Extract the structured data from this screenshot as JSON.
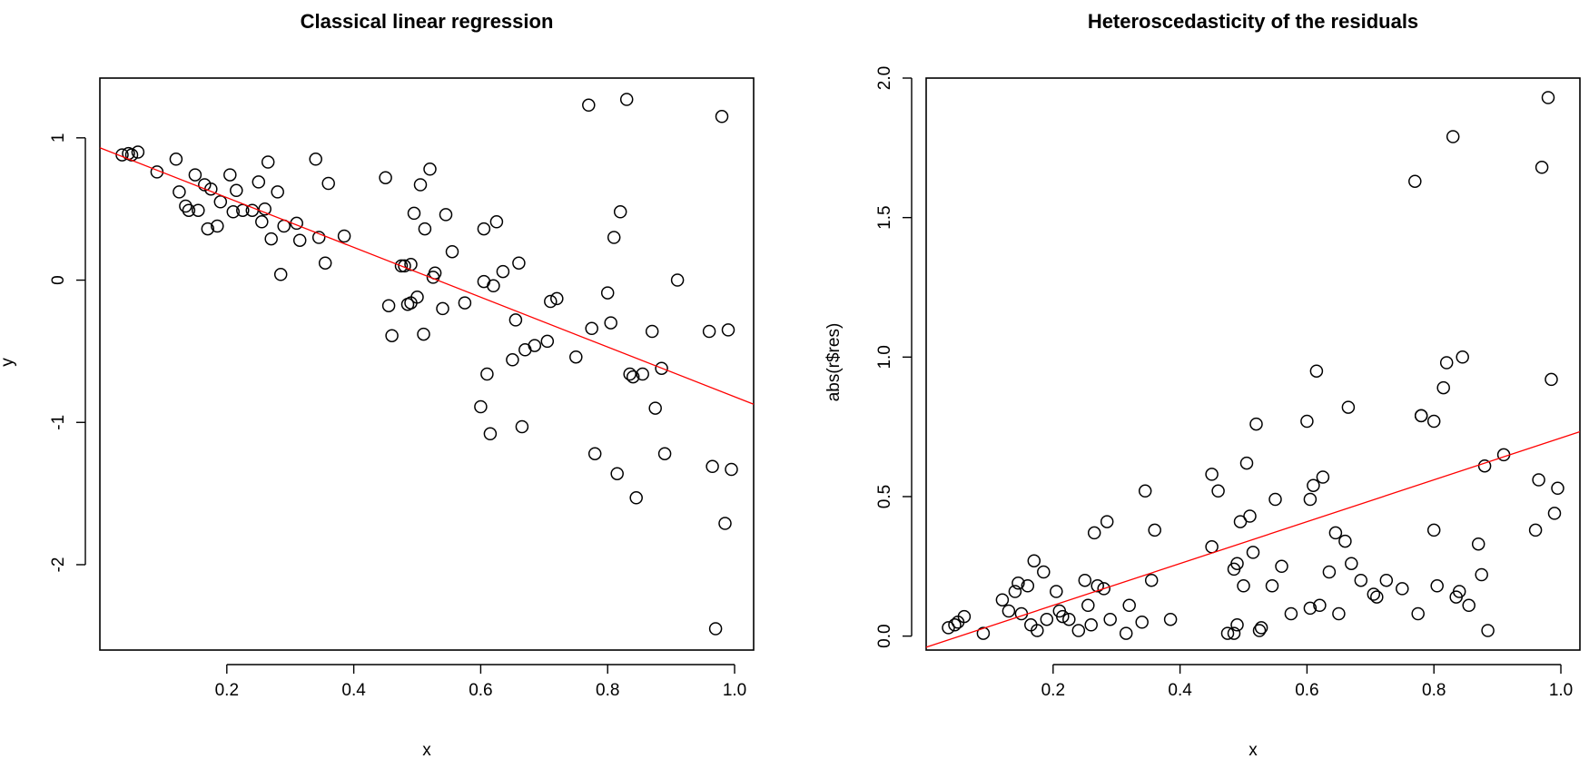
{
  "chart_data": [
    {
      "type": "scatter",
      "title": "Classical linear regression",
      "xlabel": "x",
      "ylabel": "y",
      "xlim": [
        0,
        1.03
      ],
      "ylim": [
        -2.6,
        1.42
      ],
      "xticks": [
        0.2,
        0.4,
        0.6,
        0.8,
        1.0
      ],
      "xtick_labels": [
        "0.2",
        "0.4",
        "0.6",
        "0.8",
        "1.0"
      ],
      "yticks": [
        -2,
        -1,
        0,
        1
      ],
      "ytick_labels": [
        "-2",
        "-1",
        "0",
        "1"
      ],
      "fit_line": {
        "color": "#ff0000",
        "intercept": 0.93,
        "slope": -1.75
      },
      "points": [
        [
          0.035,
          0.88
        ],
        [
          0.045,
          0.89
        ],
        [
          0.05,
          0.88
        ],
        [
          0.06,
          0.9
        ],
        [
          0.09,
          0.76
        ],
        [
          0.12,
          0.85
        ],
        [
          0.125,
          0.62
        ],
        [
          0.135,
          0.52
        ],
        [
          0.14,
          0.49
        ],
        [
          0.15,
          0.74
        ],
        [
          0.155,
          0.49
        ],
        [
          0.165,
          0.67
        ],
        [
          0.17,
          0.36
        ],
        [
          0.175,
          0.64
        ],
        [
          0.185,
          0.38
        ],
        [
          0.19,
          0.55
        ],
        [
          0.205,
          0.74
        ],
        [
          0.21,
          0.48
        ],
        [
          0.215,
          0.63
        ],
        [
          0.225,
          0.49
        ],
        [
          0.24,
          0.49
        ],
        [
          0.25,
          0.69
        ],
        [
          0.255,
          0.41
        ],
        [
          0.26,
          0.5
        ],
        [
          0.265,
          0.83
        ],
        [
          0.27,
          0.29
        ],
        [
          0.28,
          0.62
        ],
        [
          0.285,
          0.04
        ],
        [
          0.29,
          0.38
        ],
        [
          0.31,
          0.4
        ],
        [
          0.315,
          0.28
        ],
        [
          0.34,
          0.85
        ],
        [
          0.345,
          0.3
        ],
        [
          0.355,
          0.12
        ],
        [
          0.36,
          0.68
        ],
        [
          0.385,
          0.31
        ],
        [
          0.45,
          0.72
        ],
        [
          0.455,
          -0.18
        ],
        [
          0.46,
          -0.39
        ],
        [
          0.475,
          0.1
        ],
        [
          0.48,
          0.1
        ],
        [
          0.485,
          -0.17
        ],
        [
          0.49,
          -0.16
        ],
        [
          0.49,
          0.11
        ],
        [
          0.495,
          0.47
        ],
        [
          0.5,
          -0.12
        ],
        [
          0.505,
          0.67
        ],
        [
          0.51,
          -0.38
        ],
        [
          0.512,
          0.36
        ],
        [
          0.52,
          0.78
        ],
        [
          0.525,
          0.02
        ],
        [
          0.528,
          0.05
        ],
        [
          0.54,
          -0.2
        ],
        [
          0.545,
          0.46
        ],
        [
          0.555,
          0.2
        ],
        [
          0.575,
          -0.16
        ],
        [
          0.6,
          -0.89
        ],
        [
          0.605,
          0.36
        ],
        [
          0.605,
          -0.01
        ],
        [
          0.61,
          -0.66
        ],
        [
          0.615,
          -1.08
        ],
        [
          0.62,
          -0.04
        ],
        [
          0.625,
          0.41
        ],
        [
          0.635,
          0.06
        ],
        [
          0.65,
          -0.56
        ],
        [
          0.655,
          -0.28
        ],
        [
          0.66,
          0.12
        ],
        [
          0.665,
          -1.03
        ],
        [
          0.67,
          -0.49
        ],
        [
          0.685,
          -0.46
        ],
        [
          0.705,
          -0.43
        ],
        [
          0.71,
          -0.15
        ],
        [
          0.72,
          -0.13
        ],
        [
          0.75,
          -0.54
        ],
        [
          0.77,
          1.23
        ],
        [
          0.775,
          -0.34
        ],
        [
          0.78,
          -1.22
        ],
        [
          0.8,
          -0.09
        ],
        [
          0.805,
          -0.3
        ],
        [
          0.81,
          0.3
        ],
        [
          0.815,
          -1.36
        ],
        [
          0.82,
          0.48
        ],
        [
          0.83,
          1.27
        ],
        [
          0.835,
          -0.66
        ],
        [
          0.84,
          -0.68
        ],
        [
          0.845,
          -1.53
        ],
        [
          0.855,
          -0.66
        ],
        [
          0.87,
          -0.36
        ],
        [
          0.875,
          -0.9
        ],
        [
          0.885,
          -0.62
        ],
        [
          0.89,
          -1.22
        ],
        [
          0.91,
          0.0
        ],
        [
          0.96,
          -0.36
        ],
        [
          0.965,
          -1.31
        ],
        [
          0.97,
          -2.45
        ],
        [
          0.98,
          1.15
        ],
        [
          0.985,
          -1.71
        ],
        [
          0.99,
          -0.35
        ],
        [
          0.995,
          -1.33
        ]
      ]
    },
    {
      "type": "scatter",
      "title": "Heteroscedasticity of the residuals",
      "xlabel": "x",
      "ylabel": "abs(r$res)",
      "xlim": [
        0,
        1.03
      ],
      "ylim": [
        -0.05,
        2.0
      ],
      "xticks": [
        0.2,
        0.4,
        0.6,
        0.8,
        1.0
      ],
      "xtick_labels": [
        "0.2",
        "0.4",
        "0.6",
        "0.8",
        "1.0"
      ],
      "yticks": [
        0.0,
        0.5,
        1.0,
        1.5,
        2.0
      ],
      "ytick_labels": [
        "0.0",
        "0.5",
        "1.0",
        "1.5",
        "2.0"
      ],
      "fit_line": {
        "color": "#ff0000",
        "intercept": -0.04,
        "slope": 0.75
      },
      "points": [
        [
          0.035,
          0.03
        ],
        [
          0.045,
          0.04
        ],
        [
          0.05,
          0.05
        ],
        [
          0.06,
          0.07
        ],
        [
          0.09,
          0.01
        ],
        [
          0.12,
          0.13
        ],
        [
          0.13,
          0.09
        ],
        [
          0.14,
          0.16
        ],
        [
          0.145,
          0.19
        ],
        [
          0.15,
          0.08
        ],
        [
          0.16,
          0.18
        ],
        [
          0.165,
          0.04
        ],
        [
          0.17,
          0.27
        ],
        [
          0.175,
          0.02
        ],
        [
          0.185,
          0.23
        ],
        [
          0.19,
          0.06
        ],
        [
          0.205,
          0.16
        ],
        [
          0.21,
          0.09
        ],
        [
          0.215,
          0.07
        ],
        [
          0.225,
          0.06
        ],
        [
          0.24,
          0.02
        ],
        [
          0.25,
          0.2
        ],
        [
          0.255,
          0.11
        ],
        [
          0.26,
          0.04
        ],
        [
          0.265,
          0.37
        ],
        [
          0.27,
          0.18
        ],
        [
          0.28,
          0.17
        ],
        [
          0.285,
          0.41
        ],
        [
          0.29,
          0.06
        ],
        [
          0.315,
          0.01
        ],
        [
          0.32,
          0.11
        ],
        [
          0.34,
          0.05
        ],
        [
          0.345,
          0.52
        ],
        [
          0.355,
          0.2
        ],
        [
          0.36,
          0.38
        ],
        [
          0.385,
          0.06
        ],
        [
          0.45,
          0.58
        ],
        [
          0.45,
          0.32
        ],
        [
          0.46,
          0.52
        ],
        [
          0.475,
          0.01
        ],
        [
          0.485,
          0.24
        ],
        [
          0.485,
          0.01
        ],
        [
          0.49,
          0.26
        ],
        [
          0.49,
          0.04
        ],
        [
          0.495,
          0.41
        ],
        [
          0.5,
          0.18
        ],
        [
          0.505,
          0.62
        ],
        [
          0.51,
          0.43
        ],
        [
          0.515,
          0.3
        ],
        [
          0.52,
          0.76
        ],
        [
          0.525,
          0.02
        ],
        [
          0.528,
          0.03
        ],
        [
          0.545,
          0.18
        ],
        [
          0.55,
          0.49
        ],
        [
          0.56,
          0.25
        ],
        [
          0.575,
          0.08
        ],
        [
          0.6,
          0.77
        ],
        [
          0.605,
          0.49
        ],
        [
          0.605,
          0.1
        ],
        [
          0.61,
          0.54
        ],
        [
          0.615,
          0.95
        ],
        [
          0.62,
          0.11
        ],
        [
          0.625,
          0.57
        ],
        [
          0.635,
          0.23
        ],
        [
          0.645,
          0.37
        ],
        [
          0.65,
          0.08
        ],
        [
          0.66,
          0.34
        ],
        [
          0.665,
          0.82
        ],
        [
          0.67,
          0.26
        ],
        [
          0.685,
          0.2
        ],
        [
          0.705,
          0.15
        ],
        [
          0.71,
          0.14
        ],
        [
          0.725,
          0.2
        ],
        [
          0.75,
          0.17
        ],
        [
          0.77,
          1.63
        ],
        [
          0.775,
          0.08
        ],
        [
          0.78,
          0.79
        ],
        [
          0.78,
          0.79
        ],
        [
          0.8,
          0.77
        ],
        [
          0.8,
          0.38
        ],
        [
          0.805,
          0.18
        ],
        [
          0.815,
          0.89
        ],
        [
          0.82,
          0.98
        ],
        [
          0.83,
          1.79
        ],
        [
          0.835,
          0.14
        ],
        [
          0.84,
          0.16
        ],
        [
          0.845,
          1.0
        ],
        [
          0.855,
          0.11
        ],
        [
          0.87,
          0.33
        ],
        [
          0.875,
          0.22
        ],
        [
          0.88,
          0.61
        ],
        [
          0.885,
          0.02
        ],
        [
          0.91,
          0.65
        ],
        [
          0.96,
          0.38
        ],
        [
          0.965,
          0.56
        ],
        [
          0.97,
          1.68
        ],
        [
          0.98,
          1.93
        ],
        [
          0.985,
          0.92
        ],
        [
          0.99,
          0.44
        ],
        [
          0.995,
          0.53
        ]
      ]
    }
  ]
}
